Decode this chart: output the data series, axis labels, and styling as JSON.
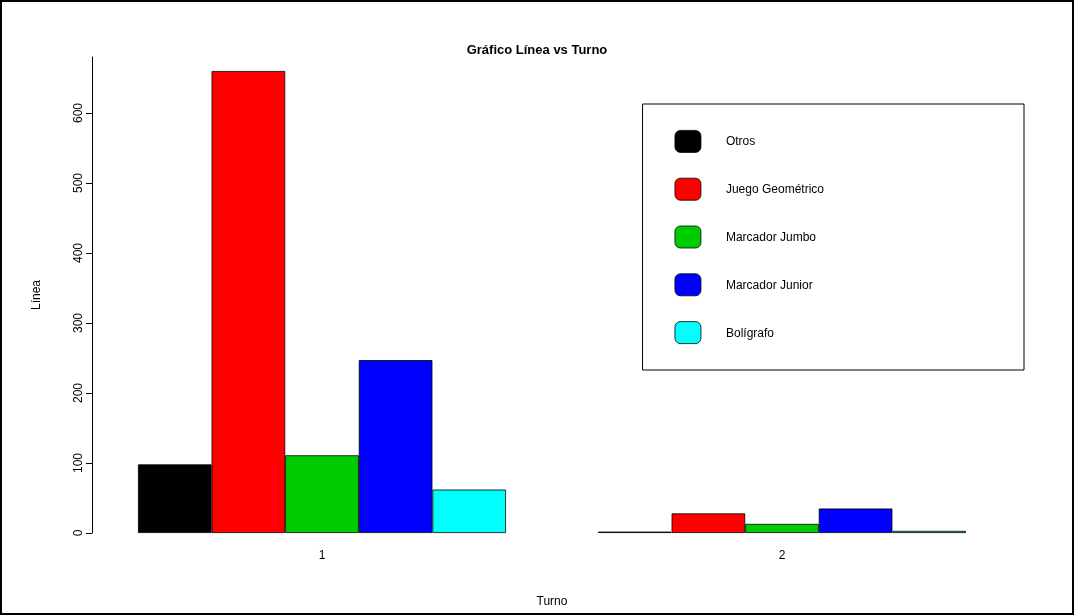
{
  "chart_data": {
    "type": "bar",
    "title": "Gráfico Línea vs Turno",
    "xlabel": "Turno",
    "ylabel": "Línea",
    "categories": [
      "1",
      "2"
    ],
    "series": [
      {
        "name": "Otros",
        "color": "#000000",
        "values": [
          98,
          2
        ]
      },
      {
        "name": "Juego Geométrico",
        "color": "#ff0000",
        "values": [
          660,
          28
        ]
      },
      {
        "name": "Marcador Jumbo",
        "color": "#00cd00",
        "values": [
          111,
          13
        ]
      },
      {
        "name": "Marcador Junior",
        "color": "#0000ff",
        "values": [
          247,
          35
        ]
      },
      {
        "name": "Bolígrafo",
        "color": "#00ffff",
        "values": [
          62,
          3
        ]
      }
    ],
    "ylim": [
      0,
      680
    ],
    "yticks": [
      0,
      100,
      200,
      300,
      400,
      500,
      600
    ],
    "grid": false,
    "legend": "top right"
  }
}
